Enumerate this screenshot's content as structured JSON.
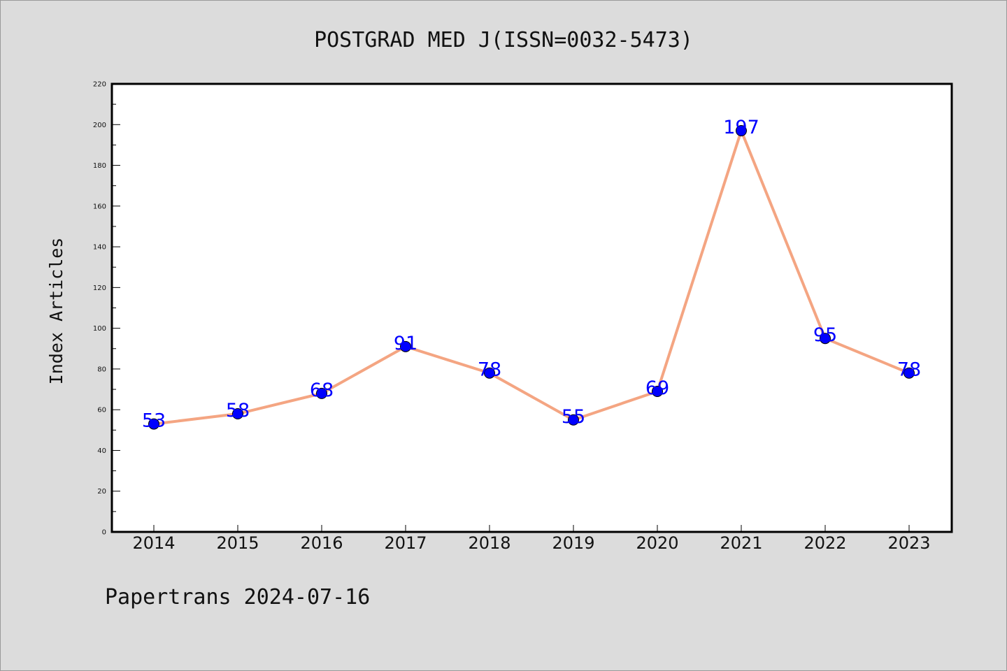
{
  "chart_data": {
    "type": "line",
    "title": "POSTGRAD MED J(ISSN=0032-5473)",
    "xlabel": "",
    "ylabel": "Index Articles",
    "categories": [
      "2014",
      "2015",
      "2016",
      "2017",
      "2018",
      "2019",
      "2020",
      "2021",
      "2022",
      "2023"
    ],
    "values": [
      53,
      58,
      68,
      91,
      78,
      55,
      69,
      197,
      95,
      78
    ],
    "data_labels": [
      "53",
      "58",
      "68",
      "91",
      "78",
      "55",
      "69",
      "197",
      "95",
      "78"
    ],
    "ylim": [
      0,
      220
    ],
    "yticks": [
      "0",
      "20",
      "40",
      "60",
      "80",
      "100",
      "120",
      "140",
      "160",
      "180",
      "200",
      "220"
    ],
    "line_color": "#f4a582",
    "marker_color": "#0000ff",
    "label_color": "#0000ff",
    "grid": false,
    "legend": "none"
  },
  "footer": "Papertrans 2024-07-16"
}
